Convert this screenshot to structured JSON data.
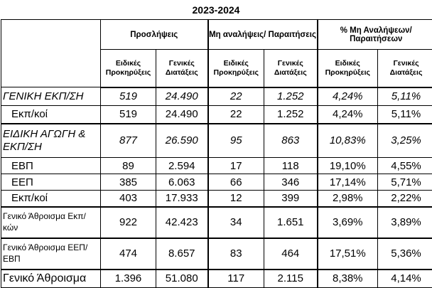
{
  "title": "2023-2024",
  "groups": [
    "Προσλήψεις",
    "Μη αναλήψεις/ Παραιτήσεις",
    "% Μη Αναλήψεων/Παραιτήσεων"
  ],
  "subheaders": [
    "Ειδικές Προκηρύξεις",
    "Γενικές Διατάξεις",
    "Ειδικές Προκηρύξεις",
    "Γενικές Διατάξεις",
    "Ειδικές Προκηρύξεις",
    "Γενικές Διατάξεις"
  ],
  "rows": [
    {
      "label": "ΓΕΝΙΚΗ ΕΚΠ/ΣΗ",
      "values": [
        "519",
        "24.490",
        "22",
        "1.252",
        "4,24%",
        "5,11%"
      ]
    },
    {
      "label": "Εκπ/κοί",
      "values": [
        "519",
        "24.490",
        "22",
        "1.252",
        "4,24%",
        "5,11%"
      ]
    },
    {
      "label": "ΕΙΔΙΚΗ ΑΓΩΓΗ & ΕΚΠ/ΣΗ",
      "values": [
        "877",
        "26.590",
        "95",
        "863",
        "10,83%",
        "3,25%"
      ]
    },
    {
      "label": "ΕΒΠ",
      "values": [
        "89",
        "2.594",
        "17",
        "118",
        "19,10%",
        "4,55%"
      ]
    },
    {
      "label": "ΕΕΠ",
      "values": [
        "385",
        "6.063",
        "66",
        "346",
        "17,14%",
        "5,71%"
      ]
    },
    {
      "label": "Εκπ/κοί",
      "values": [
        "403",
        "17.933",
        "12",
        "399",
        "2,98%",
        "2,22%"
      ]
    },
    {
      "label": "Γενικό Άθροισμα Εκπ/κών",
      "values": [
        "922",
        "42.423",
        "34",
        "1.651",
        "3,69%",
        "3,89%"
      ]
    },
    {
      "label": "Γενικό Άθροισμα ΕΕΠ/ΕΒΠ",
      "values": [
        "474",
        "8.657",
        "83",
        "464",
        "17,51%",
        "5,36%"
      ]
    },
    {
      "label": "Γενικό Άθροισμα",
      "values": [
        "1.396",
        "51.080",
        "117",
        "2.115",
        "8,38%",
        "4,14%"
      ]
    }
  ]
}
